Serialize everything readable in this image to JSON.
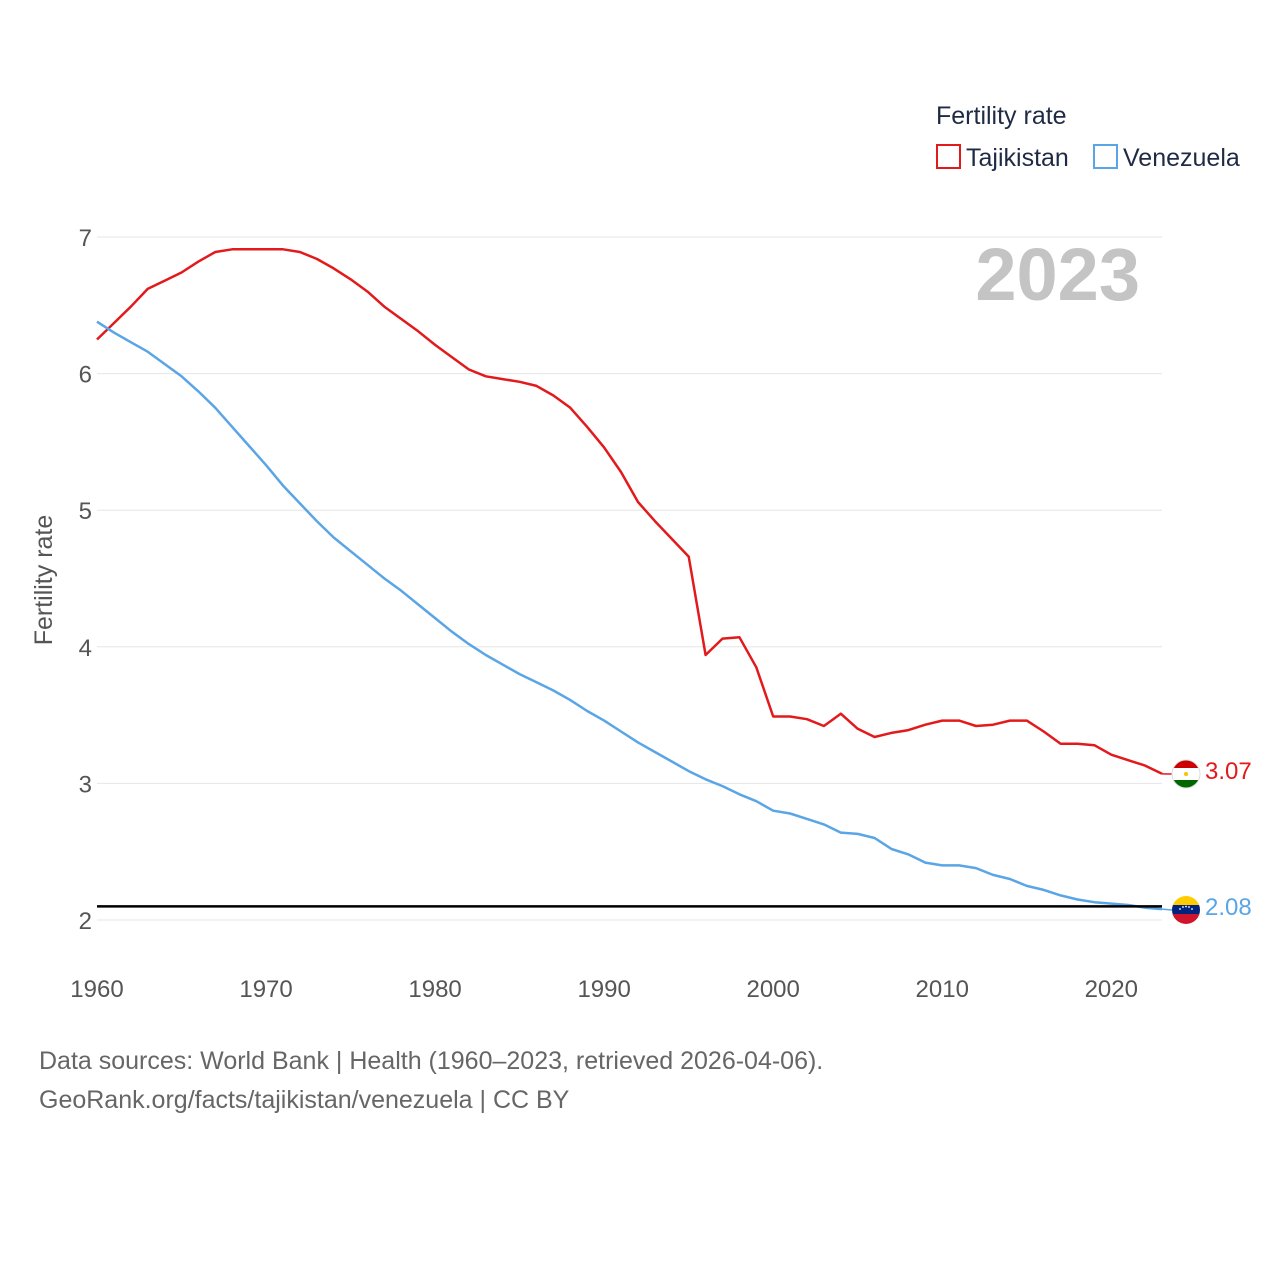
{
  "chart_data": {
    "type": "line",
    "title": "",
    "ylabel": "Fertility rate",
    "xlabel": "",
    "xlim": [
      1960,
      2023
    ],
    "ylim": [
      1.9,
      7.1
    ],
    "x_ticks": [
      "1960",
      "1970",
      "1980",
      "1990",
      "2000",
      "2010",
      "2020"
    ],
    "y_ticks": [
      "2",
      "3",
      "4",
      "5",
      "6",
      "7"
    ],
    "grid": true,
    "year_label": "2023",
    "reference_line": {
      "value": 2.1,
      "color": "#000000"
    },
    "legend": {
      "title": "Fertility rate",
      "position": "top-right"
    },
    "x": [
      1960,
      1961,
      1962,
      1963,
      1964,
      1965,
      1966,
      1967,
      1968,
      1969,
      1970,
      1971,
      1972,
      1973,
      1974,
      1975,
      1976,
      1977,
      1978,
      1979,
      1980,
      1981,
      1982,
      1983,
      1984,
      1985,
      1986,
      1987,
      1988,
      1989,
      1990,
      1991,
      1992,
      1993,
      1994,
      1995,
      1996,
      1997,
      1998,
      1999,
      2000,
      2001,
      2002,
      2003,
      2004,
      2005,
      2006,
      2007,
      2008,
      2009,
      2010,
      2011,
      2012,
      2013,
      2014,
      2015,
      2016,
      2017,
      2018,
      2019,
      2020,
      2021,
      2022,
      2023
    ],
    "series": [
      {
        "name": "Tajikistan",
        "color": "#e31a1c",
        "end_label": "3.07",
        "values": [
          6.25,
          6.37,
          6.49,
          6.62,
          6.68,
          6.74,
          6.82,
          6.89,
          6.91,
          6.91,
          6.91,
          6.91,
          6.89,
          6.84,
          6.77,
          6.69,
          6.6,
          6.49,
          6.4,
          6.31,
          6.21,
          6.12,
          6.03,
          5.98,
          5.96,
          5.94,
          5.91,
          5.84,
          5.75,
          5.61,
          5.46,
          5.28,
          5.06,
          4.92,
          4.79,
          4.66,
          3.94,
          4.06,
          4.07,
          3.85,
          3.49,
          3.49,
          3.47,
          3.42,
          3.51,
          3.4,
          3.34,
          3.37,
          3.39,
          3.43,
          3.46,
          3.46,
          3.42,
          3.43,
          3.46,
          3.46,
          3.38,
          3.29,
          3.29,
          3.28,
          3.21,
          3.17,
          3.13,
          3.07
        ]
      },
      {
        "name": "Venezuela",
        "color": "#5aa5e6",
        "end_label": "2.08",
        "values": [
          6.38,
          6.3,
          6.23,
          6.16,
          6.07,
          5.98,
          5.87,
          5.75,
          5.61,
          5.47,
          5.33,
          5.18,
          5.05,
          4.92,
          4.8,
          4.7,
          4.6,
          4.5,
          4.41,
          4.31,
          4.21,
          4.11,
          4.02,
          3.94,
          3.87,
          3.8,
          3.74,
          3.68,
          3.61,
          3.53,
          3.46,
          3.38,
          3.3,
          3.23,
          3.16,
          3.09,
          3.03,
          2.98,
          2.92,
          2.87,
          2.8,
          2.78,
          2.74,
          2.7,
          2.64,
          2.63,
          2.6,
          2.52,
          2.48,
          2.42,
          2.4,
          2.4,
          2.38,
          2.33,
          2.3,
          2.25,
          2.22,
          2.18,
          2.15,
          2.13,
          2.12,
          2.11,
          2.09,
          2.08
        ]
      }
    ]
  },
  "source": {
    "line1": "Data sources: World Bank | Health (1960–2023, retrieved 2026-04-06).",
    "line2": "GeoRank.org/facts/tajikistan/venezuela | CC BY"
  }
}
